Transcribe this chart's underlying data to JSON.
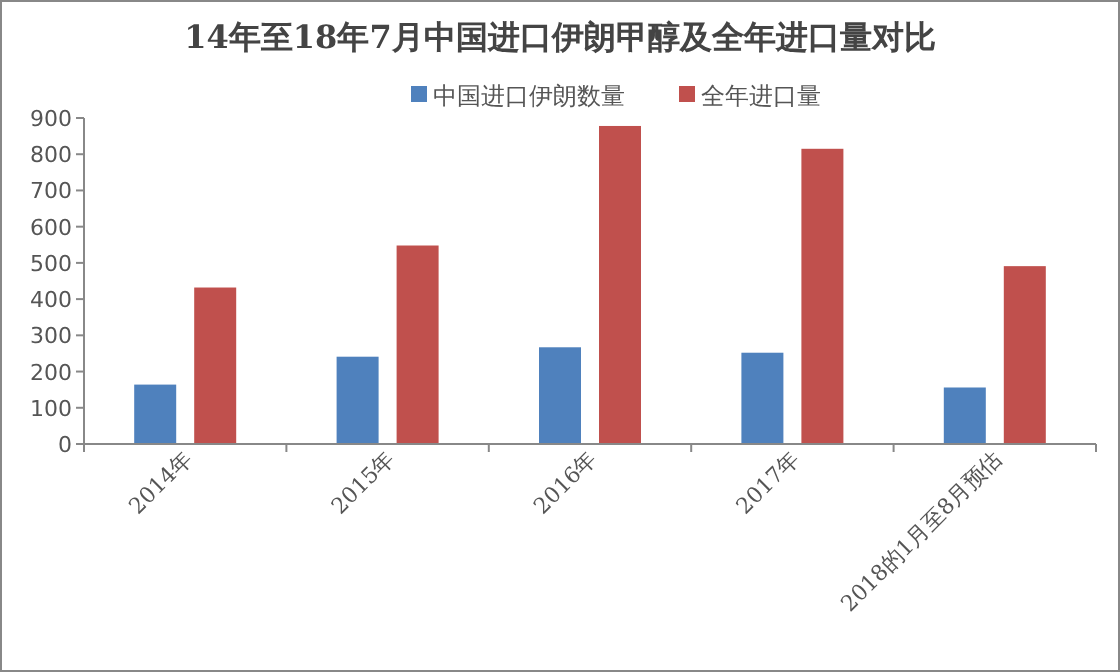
{
  "chart_data": {
    "type": "bar",
    "title": "14年至18年7月中国进口伊朗甲醇及全年进口量对比",
    "categories": [
      "2014年",
      "2015年",
      "2016年",
      "2017年",
      "2018的1月至8月预估"
    ],
    "series": [
      {
        "name": "中国进口伊朗数量",
        "color": "#4f81bd",
        "values": [
          164,
          241,
          267,
          252,
          156
        ]
      },
      {
        "name": "全年进口量",
        "color": "#c0504d",
        "values": [
          432,
          548,
          878,
          815,
          491
        ]
      }
    ],
    "ylim": [
      0,
      900
    ],
    "yticks": [
      0,
      100,
      200,
      300,
      400,
      500,
      600,
      700,
      800,
      900
    ],
    "grid": false,
    "legend": "top"
  }
}
